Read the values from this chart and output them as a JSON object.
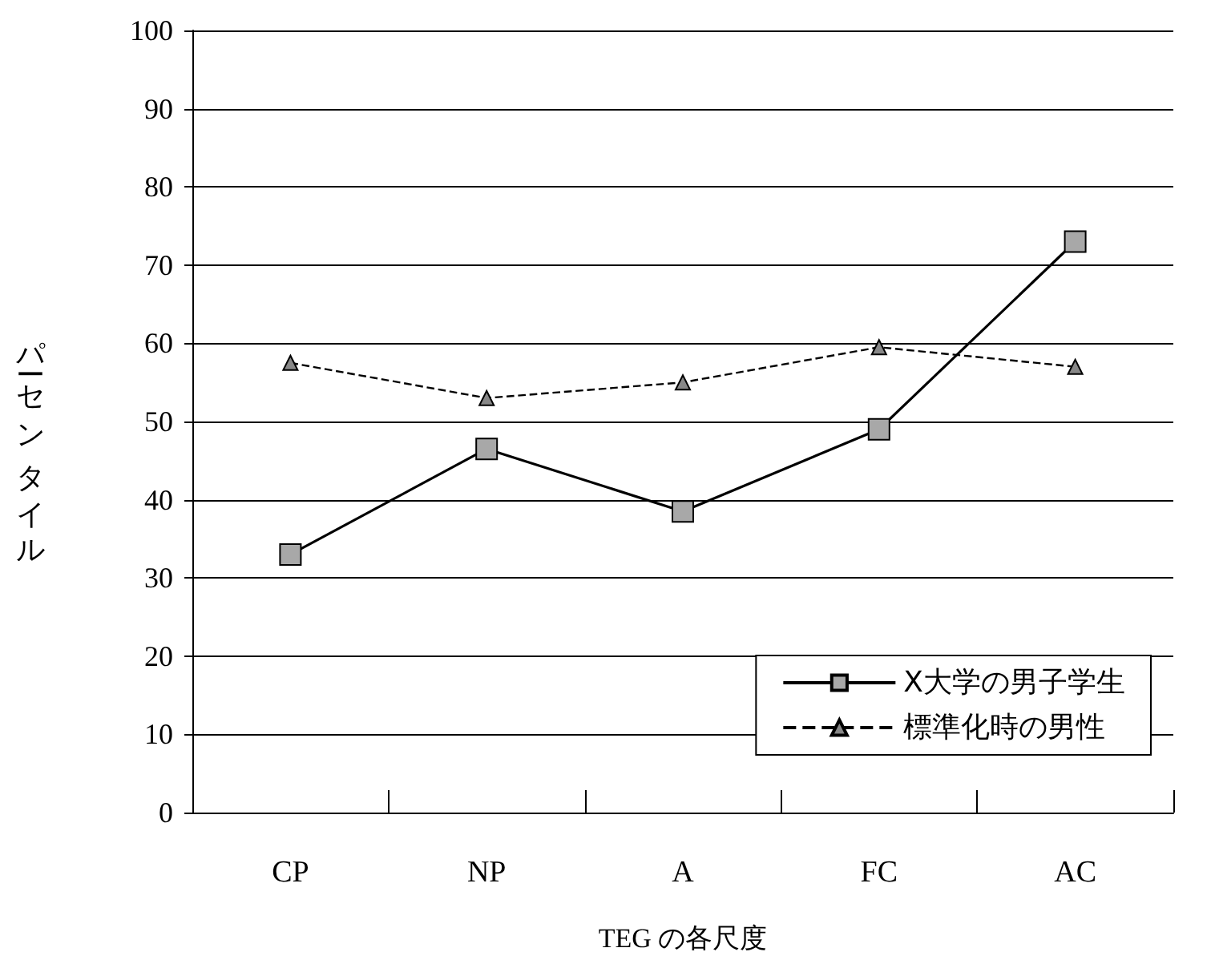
{
  "chart_data": {
    "type": "line",
    "xlabel": "TEG の各尺度",
    "ylabel": "パーセンタイル",
    "categories": [
      "CP",
      "NP",
      "A",
      "FC",
      "AC"
    ],
    "series": [
      {
        "name": "X大学の男子学生",
        "color": "#000000",
        "marker": "square",
        "line_style": "solid",
        "values": [
          33,
          46.5,
          38.5,
          49,
          73
        ]
      },
      {
        "name": "標準化時の男性",
        "color": "#000000",
        "marker": "triangle",
        "line_style": "dashed",
        "values": [
          57.5,
          53,
          55,
          59.5,
          57
        ]
      }
    ],
    "ylim": [
      0,
      100
    ],
    "yticks": [
      0,
      10,
      20,
      30,
      40,
      50,
      60,
      70,
      80,
      90,
      100
    ],
    "grid": "y",
    "legend": "bottom right"
  }
}
